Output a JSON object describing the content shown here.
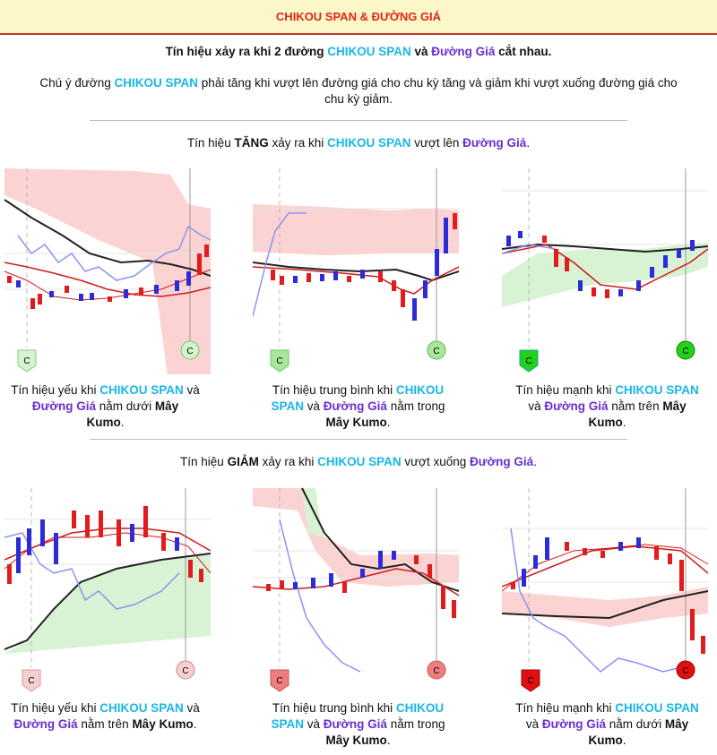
{
  "header": {
    "title": "CHIKOU SPAN & ĐƯỜNG GIÁ"
  },
  "intro": {
    "l1_a": "Tín hiệu xảy ra khi 2 đường ",
    "l1_b": "CHIKOU SPAN",
    "l1_c": " và ",
    "l1_d": "Đường Giá",
    "l1_e": " cắt nhau.",
    "l2_a": "Chú ý đường ",
    "l2_b": "CHIKOU SPAN",
    "l2_c": " phải tăng khi vượt lên đường giá cho chu kỳ tăng và giảm khi vượt xuống đường giá cho",
    "l3": "chu kỳ giảm."
  },
  "section_up": {
    "a": "Tín hiệu ",
    "b": "TĂNG",
    "c": " xảy ra khi ",
    "d": "CHIKOU SPAN",
    "e": " vượt lên ",
    "f": "Đường Giá",
    "g": "."
  },
  "section_down": {
    "a": "Tín hiệu ",
    "b": "GIẢM",
    "c": " xảy ra khi ",
    "d": "CHIKOU SPAN",
    "e": " vượt xuống ",
    "f": "Đường Giá",
    "g": "."
  },
  "marker_letter": "C",
  "captions": {
    "up_weak": {
      "a": "Tín hiệu yếu khi ",
      "b": "CHIKOU SPAN",
      "c": " và",
      "d": "Đường Giá",
      "e": " nằm dưới ",
      "f": "Mây",
      "g": "Kumo",
      "h": "."
    },
    "up_mid": {
      "a": "Tín hiệu trung bình khi ",
      "b": "CHIKOU",
      "c": "SPAN",
      "d": " và ",
      "e": "Đường Giá",
      "f": " nằm trong",
      "g": "Mây Kumo",
      "h": "."
    },
    "up_strong": {
      "a": "Tín hiệu mạnh khi ",
      "b": "CHIKOU SPAN",
      "c": "và ",
      "d": "Đường Giá",
      "e": " nằm trên ",
      "f": "Mây",
      "g": "Kumo",
      "h": "."
    },
    "down_weak": {
      "a": "Tín hiệu yếu khi ",
      "b": "CHIKOU SPAN",
      "c": " và",
      "d": "Đường Giá",
      "e": " nằm trên ",
      "f": "Mây Kumo",
      "g": "."
    },
    "down_mid": {
      "a": "Tín hiệu trung bình khi ",
      "b": "CHIKOU",
      "c": "SPAN",
      "d": " và ",
      "e": "Đường Giá",
      "f": " nằm trong",
      "g": "Mây Kumo",
      "h": "."
    },
    "down_strong": {
      "a": "Tín hiệu mạnh khi ",
      "b": "CHIKOU SPAN",
      "c": "và ",
      "d": "Đường Giá",
      "e": " nằm dưới ",
      "f": "Mây",
      "g": "Kumo",
      "h": "."
    }
  },
  "colors": {
    "bull_candle": "#2b2bd8",
    "bear_candle": "#e21b1b",
    "chikou": "#8a94f2",
    "kijun": "#222222",
    "tenkan": "#d01a1a",
    "bear_cloud": "#fbd3d3",
    "bull_cloud": "#d7f3d4",
    "marker_weak_up": "#d6f2cf",
    "marker_mid_up": "#a9e59a",
    "marker_strong_up": "#22d11a",
    "marker_weak_down": "#f6cfcf",
    "marker_mid_down": "#ee7e7e",
    "marker_strong_down": "#e01010"
  }
}
